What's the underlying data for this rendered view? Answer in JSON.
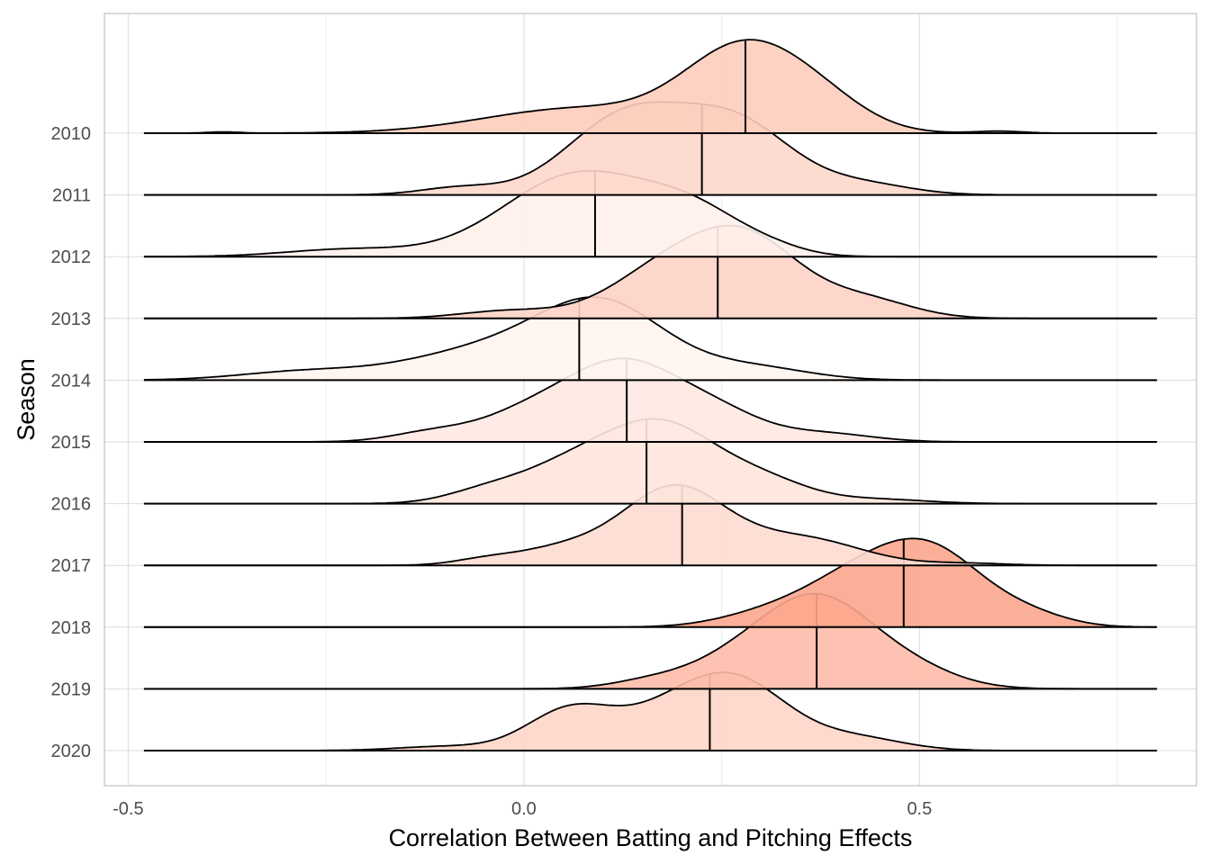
{
  "chart_data": {
    "type": "ridgeline",
    "xlabel": "Correlation Between Batting and Pitching Effects",
    "ylabel": "Season",
    "xlim": [
      -0.53,
      0.85
    ],
    "x_ticks": [
      -0.5,
      0.0,
      0.5
    ],
    "x_tick_labels": [
      "-0.5",
      "0.0",
      "0.5"
    ],
    "x_range_drawn": [
      -0.48,
      0.8
    ],
    "grid": true,
    "fill_scale": {
      "low": "#fff5f0",
      "high": "#fca68d",
      "basis": "median"
    },
    "series": [
      {
        "name": "2010",
        "median": 0.28,
        "peaks": [
          [
            -0.38,
            0.003,
            0.02
          ],
          [
            0.07,
            0.06,
            0.12
          ],
          [
            0.28,
            0.2,
            0.075
          ],
          [
            0.38,
            0.05,
            0.06
          ],
          [
            0.6,
            0.005,
            0.03
          ]
        ]
      },
      {
        "name": "2011",
        "median": 0.225,
        "peaks": [
          [
            -0.08,
            0.018,
            0.05
          ],
          [
            0.13,
            0.19,
            0.075
          ],
          [
            0.27,
            0.165,
            0.07
          ],
          [
            0.43,
            0.025,
            0.06
          ]
        ]
      },
      {
        "name": "2012",
        "median": 0.09,
        "peaks": [
          [
            -0.22,
            0.018,
            0.08
          ],
          [
            0.07,
            0.2,
            0.095
          ],
          [
            0.22,
            0.085,
            0.065
          ],
          [
            0.32,
            0.01,
            0.04
          ]
        ]
      },
      {
        "name": "2013",
        "median": 0.245,
        "peaks": [
          [
            -0.02,
            0.018,
            0.06
          ],
          [
            0.19,
            0.13,
            0.075
          ],
          [
            0.29,
            0.155,
            0.065
          ],
          [
            0.43,
            0.045,
            0.06
          ]
        ]
      },
      {
        "name": "2014",
        "median": 0.07,
        "peaks": [
          [
            -0.28,
            0.02,
            0.08
          ],
          [
            -0.05,
            0.07,
            0.1
          ],
          [
            0.1,
            0.175,
            0.08
          ],
          [
            0.29,
            0.03,
            0.07
          ]
        ]
      },
      {
        "name": "2015",
        "median": 0.13,
        "peaks": [
          [
            -0.12,
            0.02,
            0.05
          ],
          [
            0.02,
            0.08,
            0.07
          ],
          [
            0.13,
            0.165,
            0.065
          ],
          [
            0.24,
            0.07,
            0.06
          ],
          [
            0.38,
            0.02,
            0.06
          ]
        ]
      },
      {
        "name": "2016",
        "median": 0.155,
        "peaks": [
          [
            -0.05,
            0.025,
            0.05
          ],
          [
            0.07,
            0.1,
            0.07
          ],
          [
            0.18,
            0.165,
            0.065
          ],
          [
            0.3,
            0.055,
            0.06
          ],
          [
            0.45,
            0.01,
            0.06
          ]
        ]
      },
      {
        "name": "2017",
        "median": 0.2,
        "peaks": [
          [
            -0.05,
            0.012,
            0.04
          ],
          [
            0.05,
            0.04,
            0.06
          ],
          [
            0.19,
            0.185,
            0.065
          ],
          [
            0.35,
            0.065,
            0.075
          ],
          [
            0.56,
            0.005,
            0.05
          ]
        ]
      },
      {
        "name": "2018",
        "median": 0.48,
        "peaks": [
          [
            0.3,
            0.025,
            0.06
          ],
          [
            0.42,
            0.115,
            0.07
          ],
          [
            0.52,
            0.16,
            0.065
          ],
          [
            0.64,
            0.025,
            0.05
          ]
        ]
      },
      {
        "name": "2019",
        "median": 0.37,
        "peaks": [
          [
            0.16,
            0.018,
            0.05
          ],
          [
            0.26,
            0.05,
            0.06
          ],
          [
            0.37,
            0.215,
            0.07
          ],
          [
            0.49,
            0.04,
            0.06
          ]
        ]
      },
      {
        "name": "2020",
        "median": 0.235,
        "peaks": [
          [
            -0.1,
            0.01,
            0.06
          ],
          [
            0.06,
            0.1,
            0.055
          ],
          [
            0.18,
            0.07,
            0.06
          ],
          [
            0.27,
            0.16,
            0.065
          ],
          [
            0.42,
            0.03,
            0.06
          ]
        ]
      }
    ]
  }
}
